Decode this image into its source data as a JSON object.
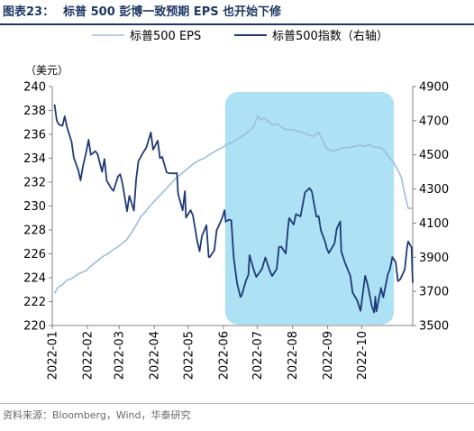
{
  "figure": {
    "number": "图表23：",
    "title": "标普 500 彭博一致预期 EPS 也开始下修",
    "source": "资料来源：Bloomberg，Wind，华泰研究"
  },
  "colors": {
    "eps": "#9dbcdb",
    "index": "#1e3a78",
    "highlight": "#9fdcf2",
    "title": "#1f3864",
    "axis": "#808080"
  },
  "chart_data": {
    "type": "line",
    "left_axis_unit": "（美元）",
    "x_tick_labels": [
      "2022-01",
      "2022-02",
      "2022-03",
      "2022-04",
      "2022-05",
      "2022-06",
      "2022-07",
      "2022-08",
      "2022-09",
      "2022-10"
    ],
    "x_range": [
      "2022-01-01",
      "2022-11-15"
    ],
    "y_left": {
      "range": [
        220,
        240
      ],
      "ticks": [
        "220",
        "222",
        "224",
        "226",
        "228",
        "230",
        "232",
        "234",
        "236",
        "238",
        "240"
      ]
    },
    "y_right": {
      "range": [
        3500,
        4900
      ],
      "ticks": [
        "3500",
        "3700",
        "3900",
        "4100",
        "4300",
        "4500",
        "4700",
        "4900"
      ]
    },
    "highlight_range": [
      "2022-06-01",
      "2022-10-31"
    ],
    "legend": {
      "position": "top",
      "entries": [
        "标普500 EPS",
        "标普500指数（右轴）"
      ]
    },
    "series": [
      {
        "name": "标普500 EPS",
        "axis": "left",
        "points": [
          [
            "2022-01-03",
            222.7
          ],
          [
            "2022-01-06",
            223.2
          ],
          [
            "2022-01-10",
            223.4
          ],
          [
            "2022-01-14",
            223.8
          ],
          [
            "2022-01-18",
            223.9
          ],
          [
            "2022-01-22",
            224.2
          ],
          [
            "2022-01-26",
            224.4
          ],
          [
            "2022-01-31",
            224.6
          ],
          [
            "2022-02-03",
            224.9
          ],
          [
            "2022-02-07",
            225.2
          ],
          [
            "2022-02-11",
            225.5
          ],
          [
            "2022-02-15",
            225.8
          ],
          [
            "2022-02-19",
            226.0
          ],
          [
            "2022-02-23",
            226.3
          ],
          [
            "2022-02-28",
            226.6
          ],
          [
            "2022-03-04",
            226.9
          ],
          [
            "2022-03-08",
            227.2
          ],
          [
            "2022-03-12",
            227.8
          ],
          [
            "2022-03-16",
            228.4
          ],
          [
            "2022-03-20",
            229.1
          ],
          [
            "2022-03-24",
            229.5
          ],
          [
            "2022-03-28",
            230.0
          ],
          [
            "2022-04-01",
            230.4
          ],
          [
            "2022-04-05",
            230.8
          ],
          [
            "2022-04-10",
            231.3
          ],
          [
            "2022-04-15",
            231.8
          ],
          [
            "2022-04-20",
            232.3
          ],
          [
            "2022-04-25",
            232.7
          ],
          [
            "2022-04-30",
            233.1
          ],
          [
            "2022-05-05",
            233.5
          ],
          [
            "2022-05-10",
            233.8
          ],
          [
            "2022-05-15",
            234.0
          ],
          [
            "2022-05-20",
            234.3
          ],
          [
            "2022-05-25",
            234.6
          ],
          [
            "2022-05-31",
            234.9
          ],
          [
            "2022-06-05",
            235.2
          ],
          [
            "2022-06-10",
            235.4
          ],
          [
            "2022-06-15",
            235.7
          ],
          [
            "2022-06-20",
            236.0
          ],
          [
            "2022-06-24",
            236.3
          ],
          [
            "2022-06-28",
            236.7
          ],
          [
            "2022-07-01",
            237.5
          ],
          [
            "2022-07-04",
            237.2
          ],
          [
            "2022-07-07",
            237.4
          ],
          [
            "2022-07-10",
            237.1
          ],
          [
            "2022-07-14",
            236.8
          ],
          [
            "2022-07-18",
            236.9
          ],
          [
            "2022-07-22",
            236.6
          ],
          [
            "2022-07-26",
            236.4
          ],
          [
            "2022-07-31",
            236.4
          ],
          [
            "2022-08-04",
            236.3
          ],
          [
            "2022-08-09",
            236.2
          ],
          [
            "2022-08-14",
            236.0
          ],
          [
            "2022-08-19",
            235.8
          ],
          [
            "2022-08-24",
            236.2
          ],
          [
            "2022-08-27",
            235.6
          ],
          [
            "2022-08-31",
            234.8
          ],
          [
            "2022-09-05",
            234.6
          ],
          [
            "2022-09-10",
            234.7
          ],
          [
            "2022-09-15",
            234.9
          ],
          [
            "2022-09-20",
            234.9
          ],
          [
            "2022-09-25",
            235.0
          ],
          [
            "2022-09-30",
            235.1
          ],
          [
            "2022-10-03",
            235.0
          ],
          [
            "2022-10-08",
            235.1
          ],
          [
            "2022-10-13",
            234.9
          ],
          [
            "2022-10-18",
            234.9
          ],
          [
            "2022-10-22",
            234.5
          ],
          [
            "2022-10-26",
            234.0
          ],
          [
            "2022-10-30",
            233.5
          ],
          [
            "2022-11-02",
            233.0
          ],
          [
            "2022-11-05",
            232.4
          ],
          [
            "2022-11-08",
            231.0
          ],
          [
            "2022-11-11",
            229.8
          ],
          [
            "2022-11-15",
            229.8
          ]
        ]
      },
      {
        "name": "标普500指数（右轴）",
        "axis": "right",
        "points": [
          [
            "2022-01-03",
            4796
          ],
          [
            "2022-01-05",
            4700
          ],
          [
            "2022-01-07",
            4677
          ],
          [
            "2022-01-10",
            4670
          ],
          [
            "2022-01-12",
            4726
          ],
          [
            "2022-01-14",
            4662
          ],
          [
            "2022-01-18",
            4577
          ],
          [
            "2022-01-20",
            4483
          ],
          [
            "2022-01-24",
            4410
          ],
          [
            "2022-01-26",
            4350
          ],
          [
            "2022-01-28",
            4432
          ],
          [
            "2022-01-31",
            4516
          ],
          [
            "2022-02-02",
            4589
          ],
          [
            "2022-02-04",
            4500
          ],
          [
            "2022-02-08",
            4521
          ],
          [
            "2022-02-10",
            4504
          ],
          [
            "2022-02-14",
            4401
          ],
          [
            "2022-02-16",
            4475
          ],
          [
            "2022-02-18",
            4349
          ],
          [
            "2022-02-22",
            4304
          ],
          [
            "2022-02-24",
            4289
          ],
          [
            "2022-02-28",
            4374
          ],
          [
            "2022-03-02",
            4386
          ],
          [
            "2022-03-04",
            4329
          ],
          [
            "2022-03-08",
            4170
          ],
          [
            "2022-03-10",
            4260
          ],
          [
            "2022-03-14",
            4173
          ],
          [
            "2022-03-16",
            4357
          ],
          [
            "2022-03-18",
            4463
          ],
          [
            "2022-03-22",
            4511
          ],
          [
            "2022-03-25",
            4543
          ],
          [
            "2022-03-29",
            4631
          ],
          [
            "2022-03-31",
            4530
          ],
          [
            "2022-04-04",
            4583
          ],
          [
            "2022-04-06",
            4481
          ],
          [
            "2022-04-08",
            4488
          ],
          [
            "2022-04-12",
            4397
          ],
          [
            "2022-04-14",
            4393
          ],
          [
            "2022-04-18",
            4391
          ],
          [
            "2022-04-21",
            4393
          ],
          [
            "2022-04-22",
            4272
          ],
          [
            "2022-04-26",
            4175
          ],
          [
            "2022-04-28",
            4287
          ],
          [
            "2022-04-29",
            4132
          ],
          [
            "2022-05-03",
            4175
          ],
          [
            "2022-05-05",
            4147
          ],
          [
            "2022-05-09",
            3991
          ],
          [
            "2022-05-11",
            3935
          ],
          [
            "2022-05-13",
            4023
          ],
          [
            "2022-05-17",
            4088
          ],
          [
            "2022-05-19",
            3901
          ],
          [
            "2022-05-20",
            3901
          ],
          [
            "2022-05-24",
            3941
          ],
          [
            "2022-05-26",
            4057
          ],
          [
            "2022-05-31",
            4132
          ],
          [
            "2022-06-02",
            4176
          ],
          [
            "2022-06-03",
            4108
          ],
          [
            "2022-06-06",
            4121
          ],
          [
            "2022-06-08",
            4115
          ],
          [
            "2022-06-10",
            3901
          ],
          [
            "2022-06-13",
            3750
          ],
          [
            "2022-06-16",
            3667
          ],
          [
            "2022-06-17",
            3675
          ],
          [
            "2022-06-21",
            3765
          ],
          [
            "2022-06-23",
            3796
          ],
          [
            "2022-06-24",
            3912
          ],
          [
            "2022-06-28",
            3821
          ],
          [
            "2022-06-30",
            3785
          ],
          [
            "2022-07-05",
            3831
          ],
          [
            "2022-07-08",
            3899
          ],
          [
            "2022-07-12",
            3819
          ],
          [
            "2022-07-14",
            3790
          ],
          [
            "2022-07-18",
            3831
          ],
          [
            "2022-07-20",
            3960
          ],
          [
            "2022-07-22",
            3962
          ],
          [
            "2022-07-26",
            3921
          ],
          [
            "2022-07-28",
            4072
          ],
          [
            "2022-07-29",
            4130
          ],
          [
            "2022-08-02",
            4091
          ],
          [
            "2022-08-04",
            4152
          ],
          [
            "2022-08-08",
            4140
          ],
          [
            "2022-08-10",
            4210
          ],
          [
            "2022-08-12",
            4280
          ],
          [
            "2022-08-16",
            4305
          ],
          [
            "2022-08-18",
            4284
          ],
          [
            "2022-08-22",
            4138
          ],
          [
            "2022-08-24",
            4141
          ],
          [
            "2022-08-26",
            4058
          ],
          [
            "2022-08-30",
            3986
          ],
          [
            "2022-08-31",
            3955
          ],
          [
            "2022-09-02",
            3924
          ],
          [
            "2022-09-07",
            3980
          ],
          [
            "2022-09-09",
            4067
          ],
          [
            "2022-09-12",
            4110
          ],
          [
            "2022-09-13",
            3932
          ],
          [
            "2022-09-16",
            3873
          ],
          [
            "2022-09-21",
            3790
          ],
          [
            "2022-09-23",
            3693
          ],
          [
            "2022-09-27",
            3647
          ],
          [
            "2022-09-30",
            3586
          ],
          [
            "2022-10-04",
            3791
          ],
          [
            "2022-10-06",
            3745
          ],
          [
            "2022-10-10",
            3612
          ],
          [
            "2022-10-12",
            3577
          ],
          [
            "2022-10-13",
            3669
          ],
          [
            "2022-10-14",
            3583
          ],
          [
            "2022-10-18",
            3720
          ],
          [
            "2022-10-20",
            3665
          ],
          [
            "2022-10-24",
            3798
          ],
          [
            "2022-10-26",
            3831
          ],
          [
            "2022-10-28",
            3901
          ],
          [
            "2022-10-31",
            3872
          ],
          [
            "2022-11-02",
            3760
          ],
          [
            "2022-11-04",
            3771
          ],
          [
            "2022-11-08",
            3829
          ],
          [
            "2022-11-10",
            3956
          ],
          [
            "2022-11-11",
            3993
          ],
          [
            "2022-11-14",
            3957
          ],
          [
            "2022-11-15",
            3750
          ]
        ]
      }
    ]
  }
}
